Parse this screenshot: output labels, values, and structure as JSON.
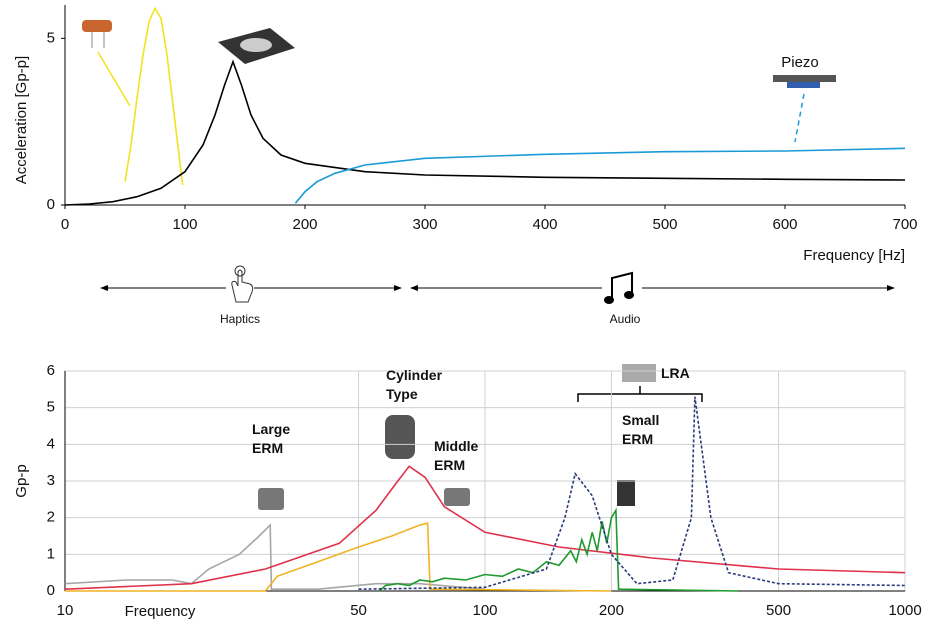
{
  "chart_data": [
    {
      "type": "line",
      "x_label": "Frequency [Hz]",
      "y_label": "Acceleration [Gp-p]",
      "annotations": [
        "Piezo",
        "Haptics",
        "Audio"
      ],
      "xlim": [
        0,
        700
      ],
      "xticks": [
        0,
        100,
        200,
        300,
        400,
        500,
        600,
        700
      ],
      "ylim": [
        0,
        6
      ],
      "yticks": [
        0,
        5
      ],
      "grid": false,
      "log_x": false,
      "series": [
        {
          "color": "#f2e41c",
          "x": [
            50,
            55,
            60,
            65,
            70,
            75,
            80,
            85,
            90,
            95,
            98
          ],
          "values": [
            0.7,
            1.8,
            3.2,
            4.5,
            5.5,
            5.9,
            5.6,
            4.5,
            3.0,
            1.5,
            0.6
          ]
        },
        {
          "color": "#000000",
          "x": [
            0,
            20,
            40,
            60,
            80,
            100,
            115,
            125,
            133,
            140,
            147,
            155,
            165,
            180,
            200,
            250,
            300,
            400,
            500,
            600,
            700
          ],
          "values": [
            0,
            0.03,
            0.1,
            0.25,
            0.5,
            1.0,
            1.8,
            2.7,
            3.6,
            4.3,
            3.6,
            2.7,
            2.0,
            1.5,
            1.25,
            1.0,
            0.9,
            0.83,
            0.8,
            0.77,
            0.75
          ]
        },
        {
          "color": "#1a9bd7",
          "x": [
            192,
            200,
            210,
            225,
            250,
            300,
            400,
            500,
            600,
            700
          ],
          "values": [
            0.05,
            0.4,
            0.7,
            0.95,
            1.2,
            1.4,
            1.52,
            1.6,
            1.62,
            1.7
          ]
        }
      ]
    },
    {
      "type": "line",
      "x_label": "Frequency",
      "y_label": "Gp-p",
      "annotations": [
        "Large ERM",
        "Cylinder Type",
        "Middle ERM",
        "Small ERM",
        "LRA"
      ],
      "xlim": [
        10,
        1000
      ],
      "xticks": [
        10,
        50,
        100,
        200,
        500,
        1000
      ],
      "ylim": [
        0,
        6
      ],
      "yticks": [
        0,
        1,
        2,
        3,
        4,
        5,
        6
      ],
      "grid": true,
      "log_x": true,
      "series": [
        {
          "color": "#a6a6a6",
          "x": [
            10,
            14,
            18,
            20,
            22,
            26,
            29,
            30.8,
            31,
            40,
            55,
            70,
            100
          ],
          "values": [
            0.2,
            0.3,
            0.3,
            0.2,
            0.6,
            1.0,
            1.5,
            1.8,
            0.05,
            0.05,
            0.2,
            0.2,
            0.05
          ]
        },
        {
          "color": "#e0314b",
          "x": [
            10,
            20,
            30,
            45,
            55,
            62,
            66,
            72,
            80,
            100,
            150,
            250,
            500,
            1000
          ],
          "values": [
            0.05,
            0.2,
            0.6,
            1.3,
            2.2,
            3.0,
            3.4,
            3.1,
            2.3,
            1.6,
            1.2,
            0.9,
            0.6,
            0.5
          ]
        },
        {
          "color": "#f0b323",
          "x": [
            10,
            30,
            32,
            40,
            50,
            60,
            70,
            73,
            74,
            200
          ],
          "values": [
            0,
            0,
            0.4,
            0.8,
            1.2,
            1.5,
            1.8,
            1.85,
            0.05,
            0
          ]
        },
        {
          "color": "#1e9a2e",
          "x": [
            56,
            58,
            62,
            66,
            70,
            75,
            80,
            90,
            100,
            110,
            120,
            130,
            140,
            150,
            160,
            165,
            170,
            175,
            180,
            185,
            190,
            195,
            200,
            205,
            208,
            400
          ],
          "values": [
            0,
            0.15,
            0.2,
            0.15,
            0.3,
            0.25,
            0.35,
            0.3,
            0.45,
            0.4,
            0.6,
            0.5,
            0.8,
            0.7,
            1.1,
            0.8,
            1.4,
            1.0,
            1.6,
            1.1,
            1.9,
            1.3,
            2.0,
            2.2,
            0.05,
            0
          ]
        },
        {
          "color": "#2b3a7a",
          "dashed": true,
          "x": [
            50,
            100,
            140,
            155,
            164,
            180,
            200,
            230,
            280,
            310,
            316,
            345,
            380,
            500,
            1000
          ],
          "values": [
            0.05,
            0.1,
            0.6,
            2.0,
            3.2,
            2.6,
            1.0,
            0.2,
            0.3,
            2.0,
            5.3,
            2.0,
            0.5,
            0.2,
            0.15
          ]
        }
      ]
    }
  ]
}
